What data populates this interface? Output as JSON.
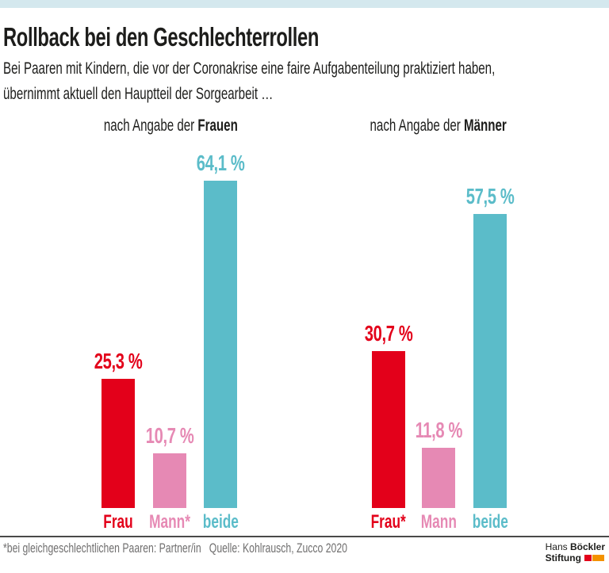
{
  "page": {
    "title": "Rollback bei den Geschlechterrollen",
    "subtitle_line1": "Bei Paaren mit Kindern, die vor der Coronakrise eine faire Aufgabenteilung praktiziert haben,",
    "subtitle_line2": "übernimmt aktuell den Hauptteil der Sorgearbeit …"
  },
  "chart_data": {
    "type": "bar",
    "unit": "%",
    "value_axis_hidden": true,
    "grid": false,
    "legend": "none",
    "ylim": [
      0,
      70
    ],
    "groups": [
      {
        "header_prefix": "nach Angabe der ",
        "header_emphasis": "Frauen",
        "categories": [
          "Frau",
          "Mann*",
          "beide"
        ],
        "bars": [
          {
            "category": "Frau",
            "value": 25.3,
            "label": "25,3 %",
            "color": "#e3001a"
          },
          {
            "category": "Mann*",
            "value": 10.7,
            "label": "10,7 %",
            "color": "#e689b4"
          },
          {
            "category": "beide",
            "value": 64.1,
            "label": "64,1 %",
            "color": "#5bbcc9"
          }
        ]
      },
      {
        "header_prefix": "nach Angabe der ",
        "header_emphasis": "Männer",
        "categories": [
          "Frau*",
          "Mann",
          "beide"
        ],
        "bars": [
          {
            "category": "Frau*",
            "value": 30.7,
            "label": "30,7 %",
            "color": "#e3001a"
          },
          {
            "category": "Mann",
            "value": 11.8,
            "label": "11,8 %",
            "color": "#e689b4"
          },
          {
            "category": "beide",
            "value": 57.5,
            "label": "57,5 %",
            "color": "#5bbcc9"
          }
        ]
      }
    ]
  },
  "footer": {
    "note": "*bei gleichgeschlechtlichen Paaren: Partner/in",
    "source": "Quelle: Kohlrausch, Zucco 2020",
    "logo_line1_normal": "Hans ",
    "logo_line1_bold": "Böckler",
    "logo_line2_bold": "Stiftung"
  },
  "colors": {
    "topbar": "#d4e8ee",
    "red": "#e3001a",
    "pink": "#e689b4",
    "teal": "#5bbcc9",
    "logo_red": "#e3001a",
    "logo_orange": "#f39200",
    "footnote_gray": "#706f6f"
  }
}
